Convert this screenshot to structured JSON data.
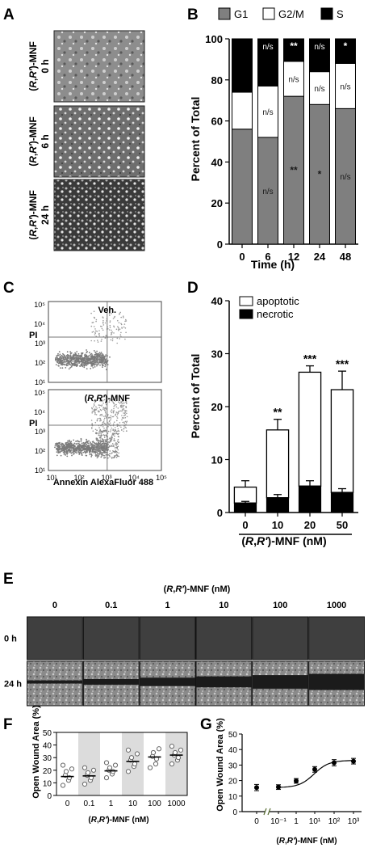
{
  "panels": {
    "A": {
      "letter": "A",
      "rows": [
        {
          "label": "(R,R′)-MNF",
          "time": "0 h"
        },
        {
          "label": "(R,R′)-MNF",
          "time": "6 h"
        },
        {
          "label": "(R,R′)-MNF",
          "time": "24 h"
        }
      ]
    },
    "B": {
      "letter": "B",
      "ylabel": "Percent of Total",
      "xlabel": "Time (h)",
      "legend": [
        "G1",
        "G2/M",
        "S"
      ],
      "colors": {
        "G1": "#7f7f7f",
        "G2/M": "#ffffff",
        "S": "#000000"
      }
    },
    "C": {
      "letter": "C",
      "top_label": "Veh.",
      "bottom_label": "(R,R′)-MNF",
      "pi_label": "PI",
      "xaxis_label": "Annexin AlexaFluor 488",
      "yticks": [
        "10⁵",
        "10⁴",
        "10³",
        "10²",
        "10¹"
      ],
      "xticks": [
        "10¹",
        "10²",
        "10³",
        "10⁴",
        "10⁵"
      ]
    },
    "D": {
      "letter": "D",
      "ylabel": "Percent of Total",
      "xlabel": "(R,R′)-MNF (nM)",
      "legend": [
        "apoptotic",
        "necrotic"
      ]
    },
    "E": {
      "letter": "E",
      "header": "(R,R′)-MNF (nM)",
      "concentrations": [
        "0",
        "0.1",
        "1",
        "10",
        "100",
        "1000"
      ],
      "rows": [
        "0 h",
        "24 h"
      ]
    },
    "F": {
      "letter": "F",
      "ylabel": "Open Wound Area (%)",
      "xlabel": "(R,R′)-MNF (nM)"
    },
    "G": {
      "letter": "G",
      "ylabel": "Open Wound Area (%)",
      "xlabel": "(R,R′)-MNF (nM)"
    }
  },
  "chart_data": [
    {
      "panel": "B",
      "type": "bar",
      "stacked": true,
      "categories": [
        "0",
        "6",
        "12",
        "24",
        "48"
      ],
      "series": [
        {
          "name": "G1",
          "values": [
            56,
            52,
            72,
            68,
            66
          ],
          "annotations": [
            "",
            "n/s",
            "**",
            "*",
            "n/s"
          ]
        },
        {
          "name": "G2/M",
          "values": [
            18,
            25,
            17,
            16,
            22
          ],
          "annotations": [
            "",
            "n/s",
            "n/s",
            "n/s",
            "n/s"
          ]
        },
        {
          "name": "S",
          "values": [
            26,
            23,
            11,
            16,
            12
          ],
          "annotations": [
            "",
            "n/s",
            "**",
            "n/s",
            "*"
          ]
        }
      ],
      "ylabel": "Percent of Total",
      "xlabel": "Time (h)",
      "ylim": [
        0,
        100
      ],
      "yticks": [
        0,
        20,
        40,
        60,
        80,
        100
      ],
      "legend_position": "top"
    },
    {
      "panel": "D",
      "type": "bar",
      "stacked": true,
      "categories": [
        "0",
        "10",
        "20",
        "50"
      ],
      "series": [
        {
          "name": "necrotic",
          "values": [
            1.8,
            2.8,
            5.0,
            3.8
          ],
          "errors": [
            0.3,
            0.6,
            1.0,
            0.7
          ]
        },
        {
          "name": "apoptotic",
          "values": [
            3.0,
            12.8,
            21.5,
            19.4
          ],
          "errors": [
            1.2,
            2.0,
            1.2,
            3.5
          ]
        }
      ],
      "annotations": [
        "",
        "**",
        "***",
        "***"
      ],
      "ylabel": "Percent of Total",
      "xlabel": "(R,R′)-MNF (nM)",
      "ylim": [
        0,
        40
      ],
      "yticks": [
        0,
        10,
        20,
        30,
        40
      ],
      "legend_position": "top-left"
    },
    {
      "panel": "F",
      "type": "scatter",
      "categories": [
        "0",
        "0.1",
        "1",
        "10",
        "100",
        "1000"
      ],
      "points": [
        [
          8,
          12,
          14,
          16,
          19,
          21,
          24
        ],
        [
          9,
          12,
          14,
          16,
          18,
          20,
          22
        ],
        [
          14,
          17,
          19,
          20,
          22,
          24,
          26
        ],
        [
          19,
          23,
          25,
          28,
          30,
          33,
          36
        ],
        [
          22,
          25,
          29,
          31,
          34,
          37
        ],
        [
          25,
          28,
          30,
          32,
          34,
          36,
          39
        ]
      ],
      "means": [
        15,
        15.5,
        19.5,
        27,
        30.5,
        32
      ],
      "ylabel": "Open Wound Area (%)",
      "xlabel": "(R,R′)-MNF (nM)",
      "ylim": [
        0,
        50
      ],
      "yticks": [
        0,
        10,
        20,
        30,
        40,
        50
      ]
    },
    {
      "panel": "G",
      "type": "line",
      "x_labels": [
        "0",
        "10⁻¹",
        "1",
        "10¹",
        "10²",
        "10³"
      ],
      "values": [
        15.5,
        15.8,
        19.8,
        27.2,
        31.5,
        32.5
      ],
      "errors": [
        2.0,
        1.5,
        1.5,
        1.8,
        2.0,
        1.8
      ],
      "ylabel": "Open Wound Area (%)",
      "xlabel": "(R,R′)-MNF (nM)",
      "ylim": [
        0,
        50
      ],
      "yticks": [
        0,
        10,
        20,
        30,
        40,
        50
      ]
    }
  ]
}
